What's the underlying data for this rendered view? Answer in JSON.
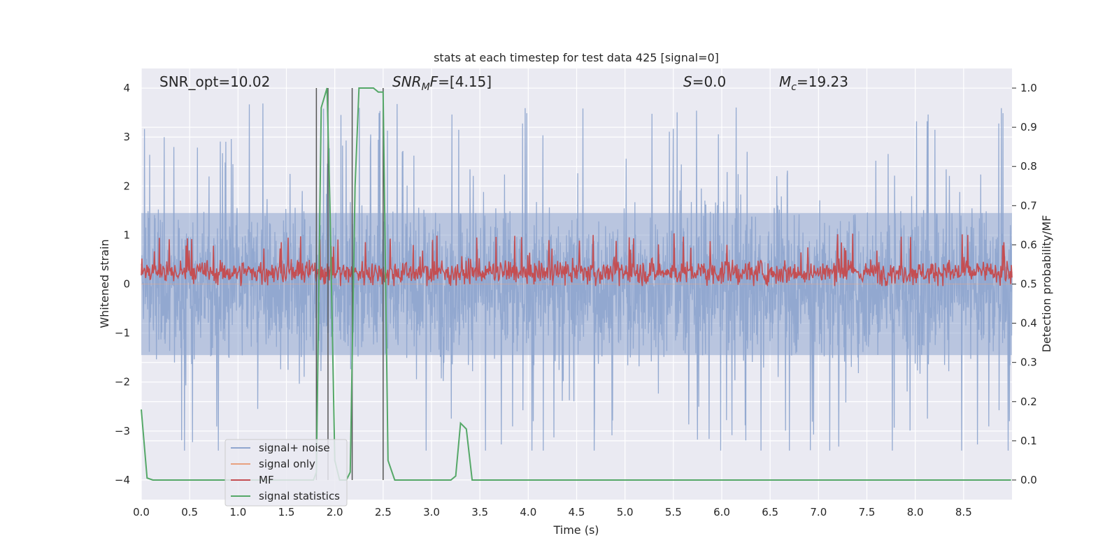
{
  "chart_data": {
    "type": "line",
    "title": "stats at each timestep for test data 425 [signal=0]",
    "xlabel": "Time (s)",
    "ylabel": "Whitened strain",
    "y2label": "Detection probability/MF",
    "xlim": [
      0.0,
      9.0
    ],
    "ylim": [
      -4.4,
      4.4
    ],
    "y2lim": [
      -0.05,
      1.05
    ],
    "xticks": [
      0.0,
      0.5,
      1.0,
      1.5,
      2.0,
      2.5,
      3.0,
      3.5,
      4.0,
      4.5,
      5.0,
      5.5,
      6.0,
      6.5,
      7.0,
      7.5,
      8.0,
      8.5
    ],
    "xtick_labels": [
      "0.0",
      "0.5",
      "1.0",
      "1.5",
      "2.0",
      "2.5",
      "3.0",
      "3.5",
      "4.0",
      "4.5",
      "5.0",
      "5.5",
      "6.0",
      "6.5",
      "7.0",
      "7.5",
      "8.0",
      "8.5"
    ],
    "yticks": [
      4,
      3,
      2,
      1,
      0,
      -1,
      -2,
      -3,
      -4
    ],
    "ytick_labels": [
      "4",
      "3",
      "2",
      "1",
      "0",
      "−1",
      "−2",
      "−3",
      "−4"
    ],
    "y2ticks": [
      1.0,
      0.9,
      0.8,
      0.7,
      0.6,
      0.5,
      0.4,
      0.3,
      0.2,
      0.1,
      0.0
    ],
    "y2tick_labels": [
      "1.0",
      "0.9",
      "0.8",
      "0.7",
      "0.6",
      "0.5",
      "0.4",
      "0.3",
      "0.2",
      "0.1",
      "0.0"
    ],
    "grid": true,
    "legend_position": "lower-left",
    "annotations": {
      "snr_opt": "SNR_opt=10.02",
      "snr_mf_sym": "SNR",
      "snr_mf_sub": "M",
      "snr_mf_sym2": "F",
      "snr_mf_val": "=[4.15]",
      "s_sym": "S",
      "s_val": "=0.0",
      "mc_sym": "M",
      "mc_sub": "c",
      "mc_val": "=19.23"
    },
    "vertical_markers": [
      1.81,
      1.93,
      2.18,
      2.5
    ],
    "series": [
      {
        "name": "signal+ noise",
        "color": "#8fa6cf",
        "axis": "left",
        "kind": "noise",
        "amplitude_range": [
          -3.4,
          3.8
        ],
        "sample_rate_hz": 300
      },
      {
        "name": "signal only",
        "color": "#e8a17f",
        "axis": "left",
        "kind": "flat",
        "value": 0.0
      },
      {
        "name": "MF",
        "color": "#c44e52",
        "axis": "right",
        "kind": "noise",
        "amplitude_range": [
          0.495,
          0.63
        ]
      },
      {
        "name": "signal statistics",
        "color": "#55a868",
        "axis": "right",
        "kind": "line",
        "x": [
          0.0,
          0.06,
          0.12,
          0.2,
          1.78,
          1.81,
          1.86,
          1.92,
          1.95,
          2.0,
          2.05,
          2.12,
          2.16,
          2.21,
          2.25,
          2.4,
          2.45,
          2.5,
          2.55,
          2.62,
          3.2,
          3.25,
          3.3,
          3.36,
          3.42,
          8.99
        ],
        "y": [
          0.18,
          0.005,
          0.0,
          0.0,
          0.0,
          0.02,
          0.95,
          1.0,
          0.7,
          0.05,
          0.0,
          0.0,
          0.02,
          0.75,
          1.0,
          1.0,
          0.99,
          0.99,
          0.05,
          0.0,
          0.0,
          0.01,
          0.145,
          0.13,
          0.0,
          0.0
        ]
      }
    ]
  }
}
